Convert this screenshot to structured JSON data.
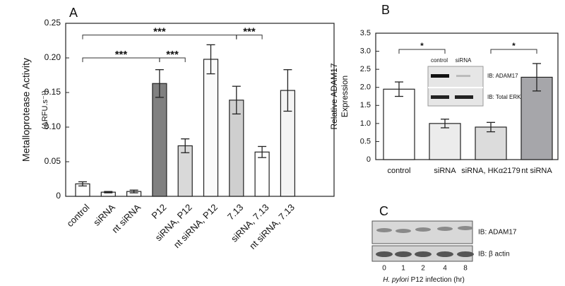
{
  "chart_data": [
    {
      "type": "bar",
      "title": "A",
      "ylabel": "Metalloprotease Activity",
      "ylabel_units": "(ΔRFU.s⁻¹)",
      "categories": [
        "control",
        "siRNA",
        "nt siRNA",
        "P12",
        "siRNA, P12",
        "nt siRNA, P12",
        "7.13",
        "siRNA, 7.13",
        "nt siRNA, 7.13"
      ],
      "values": [
        0.018,
        0.006,
        0.007,
        0.163,
        0.073,
        0.198,
        0.139,
        0.064,
        0.153
      ],
      "errors": [
        0.003,
        0.001,
        0.002,
        0.02,
        0.01,
        0.021,
        0.02,
        0.008,
        0.03
      ],
      "colors": [
        "#ffffff",
        "#ffffff",
        "#ffffff",
        "#808080",
        "#d9d9d9",
        "#fafafa",
        "#cfcfcf",
        "#ffffff",
        "#f4f4f4"
      ],
      "ylim": [
        0,
        0.25
      ],
      "yticks": [
        0,
        0.05,
        {
          "value": 0.1,
          "label": "0.10"
        },
        0.15,
        {
          "value": 0.2,
          "label": "0.20"
        },
        0.25
      ],
      "brackets": [
        {
          "label": "***",
          "y": 0.2,
          "between": [
            "control",
            "P12"
          ]
        },
        {
          "label": "***",
          "y": 0.233,
          "between": [
            "control",
            "7.13"
          ]
        },
        {
          "label": "***",
          "y": 0.2,
          "between": [
            "P12",
            "siRNA, P12"
          ]
        },
        {
          "label": "***",
          "y": 0.233,
          "between": [
            "7.13",
            "siRNA, 7.13"
          ]
        }
      ]
    },
    {
      "type": "bar",
      "title": "B",
      "ylabel": "Relative ADAM17",
      "ylabel_line2": "Expression",
      "categories": [
        "control",
        "siRNA",
        "siRNA, HKα2179",
        "nt siRNA"
      ],
      "values": [
        1.95,
        1.0,
        0.9,
        2.28
      ],
      "errors": [
        0.2,
        0.12,
        0.13,
        0.38
      ],
      "colors": [
        "#ffffff",
        "#ececec",
        "#dcdcdc",
        "#a6a6aa"
      ],
      "ylim": [
        0,
        3.5
      ],
      "yticks": [
        0,
        0.5,
        {
          "value": 1,
          "label": "1.0"
        },
        1.5,
        {
          "value": 2,
          "label": "2.0"
        },
        2.5,
        {
          "value": 3,
          "label": "3.0"
        },
        3.5
      ],
      "brackets": [
        {
          "label": "*",
          "y": 3.05,
          "between": [
            "control",
            "siRNA"
          ]
        },
        {
          "label": "*",
          "y": 3.05,
          "between": [
            "siRNA, HKα2179",
            "nt siRNA"
          ]
        }
      ],
      "inset": {
        "lanes": [
          "control",
          "siRNA"
        ],
        "blots": [
          "IB: ADAM17",
          "IB: Total ERK"
        ]
      }
    }
  ],
  "panel_c": {
    "title": "C",
    "blots": [
      "IB: ADAM17",
      "IB: β actin"
    ],
    "lanes": [
      "0",
      "1",
      "2",
      "4",
      "8"
    ],
    "xlabel_italic": "H. pylori",
    "xlabel": "P12 infection (hr)"
  }
}
